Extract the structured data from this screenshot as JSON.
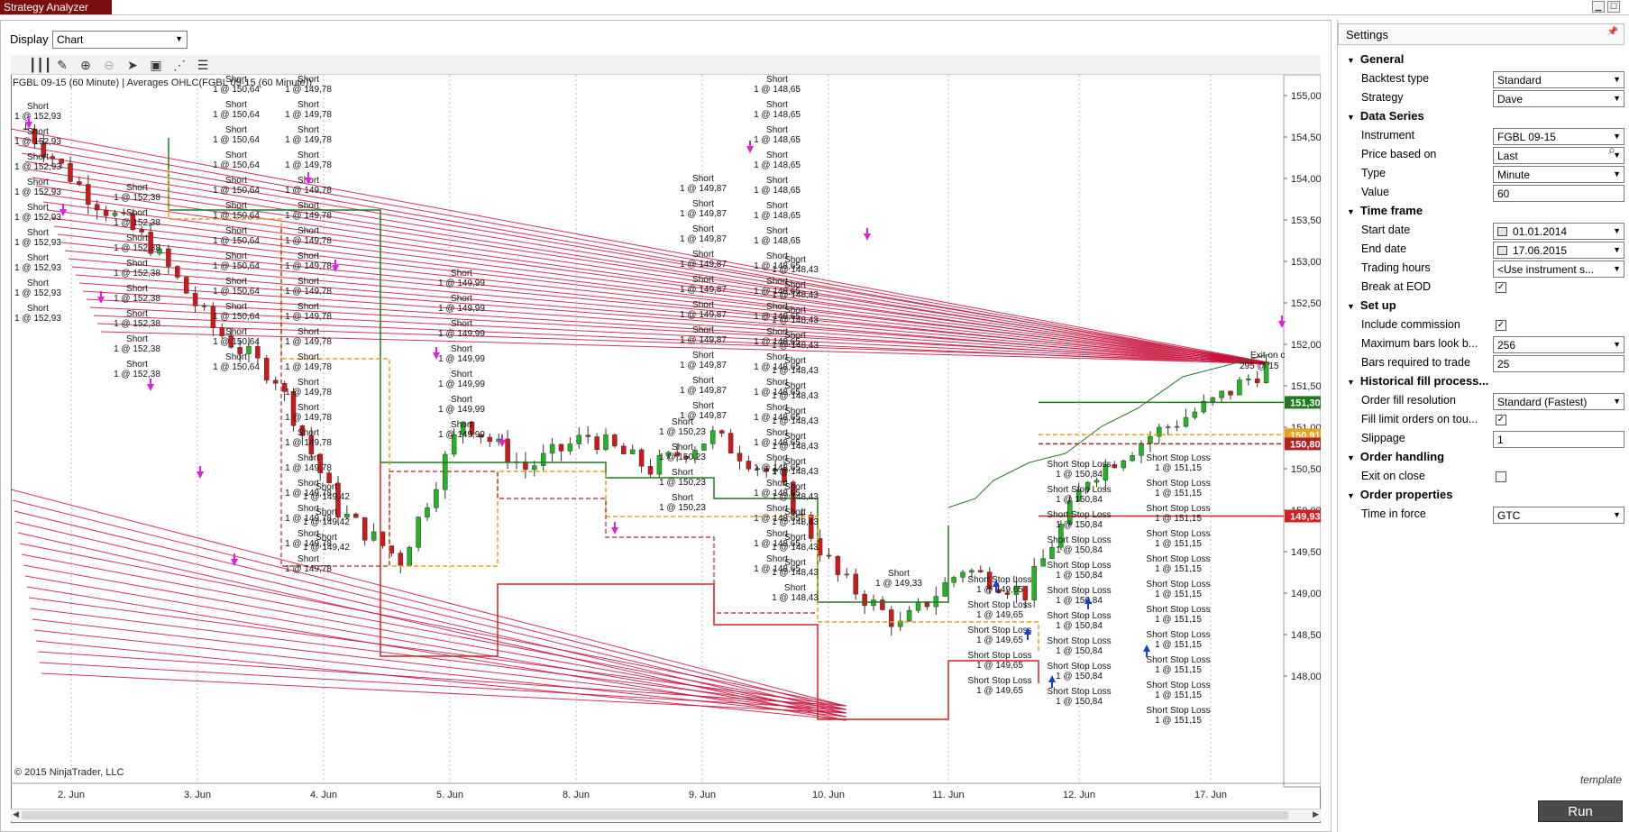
{
  "window": {
    "title": "Strategy Analyzer"
  },
  "display": {
    "label": "Display",
    "value": "Chart"
  },
  "chart": {
    "indicator_label": "FGBL 09-15 (60 Minute) | Averages OHLC(FGBL 09-15 (60 Minute))",
    "copyright": "© 2015 NinjaTrader, LLC",
    "toolbar_icons": [
      "bars-icon",
      "pencil-icon",
      "zoom-in-icon",
      "zoom-out-icon",
      "pointer-icon",
      "data-box-icon",
      "strategy-icon",
      "properties-icon"
    ],
    "price_ticks": [
      "155,00",
      "154,50",
      "154,00",
      "153,50",
      "153,00",
      "152,50",
      "152,00",
      "151,50",
      "151,00",
      "150,50",
      "150,00",
      "149,50",
      "149,00",
      "148,50",
      "148,00"
    ],
    "date_ticks": [
      "2. Jun",
      "3. Jun",
      "4. Jun",
      "5. Jun",
      "8. Jun",
      "9. Jun",
      "10. Jun",
      "11. Jun",
      "12. Jun",
      "17. Jun"
    ],
    "price_markers": [
      {
        "label": "151,30",
        "color": "#1f7a1f"
      },
      {
        "label": "150,91",
        "color": "#e8a21a"
      },
      {
        "label": "150,80",
        "color": "#b22222"
      },
      {
        "label": "149,93",
        "color": "#d62020"
      }
    ],
    "annotations": {
      "short_label": "Short",
      "short_stop_loss_label": "Short Stop Loss",
      "exit_label": "Exit on c",
      "exit_qty": "295 @ 15",
      "entries": [
        "1 @ 152,93",
        "1 @ 152,38",
        "1 @ 150,64",
        "1 @ 149,78",
        "1 @ 149,99",
        "1 @ 149,87",
        "1 @ 148,65",
        "1 @ 148,56",
        "1 @ 148,43",
        "1 @ 149,33",
        "1 @ 149,42",
        "1 @ 150,23",
        "1 @ 149,65",
        "1 @ 150,84",
        "1 @ 151,15"
      ]
    }
  },
  "settings": {
    "header": "Settings",
    "sections": [
      {
        "title": "General",
        "props": [
          {
            "label": "Backtest type",
            "kind": "select",
            "value": "Standard"
          },
          {
            "label": "Strategy",
            "kind": "select",
            "value": "Dave"
          }
        ]
      },
      {
        "title": "Data Series",
        "props": [
          {
            "label": "Instrument",
            "kind": "select",
            "value": "FGBL 09-15"
          },
          {
            "label": "Price based on",
            "kind": "select",
            "value": "Last"
          },
          {
            "label": "Type",
            "kind": "select",
            "value": "Minute"
          },
          {
            "label": "Value",
            "kind": "input",
            "value": "60"
          }
        ]
      },
      {
        "title": "Time frame",
        "props": [
          {
            "label": "Start date",
            "kind": "date",
            "value": "01.01.2014"
          },
          {
            "label": "End date",
            "kind": "date",
            "value": "17.06.2015"
          },
          {
            "label": "Trading hours",
            "kind": "select",
            "value": "<Use instrument s..."
          },
          {
            "label": "Break at EOD",
            "kind": "check",
            "value": "✓"
          }
        ]
      },
      {
        "title": "Set up",
        "props": [
          {
            "label": "Include commission",
            "kind": "check",
            "value": "✓"
          },
          {
            "label": "Maximum bars look b...",
            "kind": "select",
            "value": "256"
          },
          {
            "label": "Bars required to trade",
            "kind": "input",
            "value": "25"
          }
        ]
      },
      {
        "title": "Historical fill process...",
        "props": [
          {
            "label": "Order fill resolution",
            "kind": "select",
            "value": "Standard (Fastest)"
          },
          {
            "label": "Fill limit orders on tou...",
            "kind": "check",
            "value": "✓"
          },
          {
            "label": "Slippage",
            "kind": "input",
            "value": "1"
          }
        ]
      },
      {
        "title": "Order handling",
        "props": [
          {
            "label": "Exit on close",
            "kind": "check",
            "value": ""
          }
        ]
      },
      {
        "title": "Order properties",
        "props": [
          {
            "label": "Time in force",
            "kind": "select",
            "value": "GTC"
          }
        ]
      }
    ],
    "template_link": "template",
    "run_button": "Run"
  }
}
